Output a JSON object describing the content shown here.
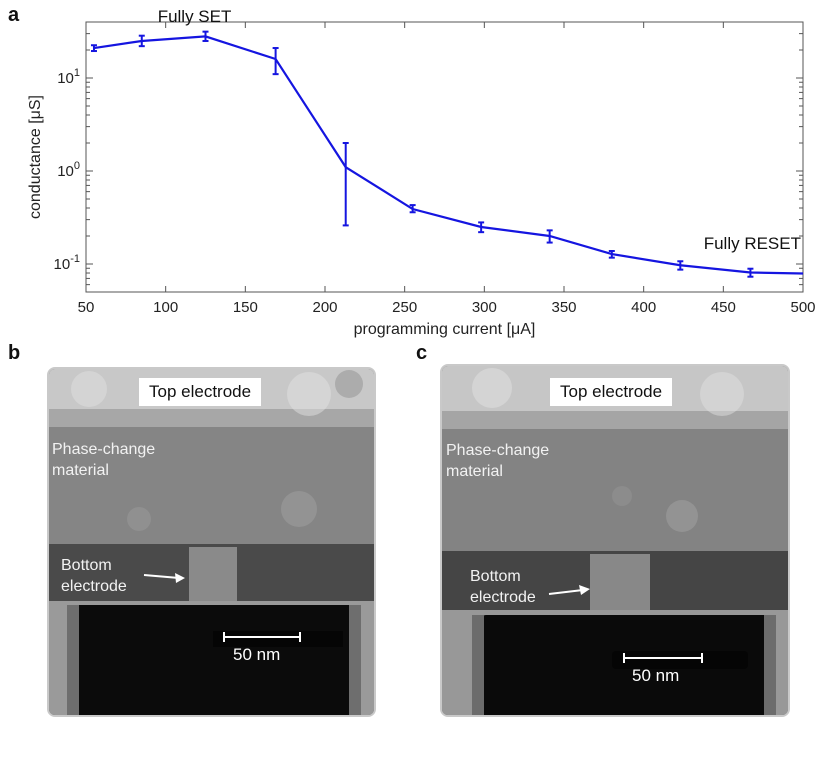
{
  "panels": {
    "a": "a",
    "b": "b",
    "c": "c"
  },
  "chart_data": {
    "type": "line",
    "xlabel": "programming current [μA]",
    "ylabel": "conductance [μS]",
    "xlim": [
      50,
      500
    ],
    "ylim": [
      0.05,
      40
    ],
    "yscale": "log",
    "xticks": [
      50,
      100,
      150,
      200,
      250,
      300,
      350,
      400,
      450,
      500
    ],
    "yticks": [
      {
        "value": 0.1,
        "base": "10",
        "exp": "-1"
      },
      {
        "value": 1,
        "base": "10",
        "exp": "0"
      },
      {
        "value": 10,
        "base": "10",
        "exp": "1"
      }
    ],
    "color": "#1515e0",
    "x": [
      55,
      85,
      125,
      169,
      213,
      255,
      298,
      341,
      380,
      423,
      467,
      500
    ],
    "y": [
      21,
      25,
      28,
      16,
      1.1,
      0.39,
      0.25,
      0.2,
      0.128,
      0.097,
      0.081,
      0.079
    ],
    "err_low": [
      19.5,
      22,
      25,
      11,
      0.26,
      0.36,
      0.22,
      0.17,
      0.117,
      0.087,
      0.073,
      null
    ],
    "err_high": [
      22.5,
      28.5,
      31.5,
      21,
      2.0,
      0.43,
      0.28,
      0.23,
      0.138,
      0.107,
      0.089,
      null
    ],
    "annotations": [
      {
        "text": "Fully SET",
        "x": 95,
        "y": 40,
        "anchor": "start"
      },
      {
        "text": "Fully RESET",
        "x": 500,
        "y": 0.145,
        "anchor": "end"
      }
    ]
  },
  "tem_b": {
    "top_label": "Top electrode",
    "pcm_label": "Phase-change\nmaterial",
    "bottom_label": "Bottom\nelectrode",
    "scale_label": "50 nm"
  },
  "tem_c": {
    "top_label": "Top electrode",
    "pcm_label": "Phase-change\nmaterial",
    "bottom_label": "Bottom\nelectrode",
    "scale_label": "50 nm"
  }
}
